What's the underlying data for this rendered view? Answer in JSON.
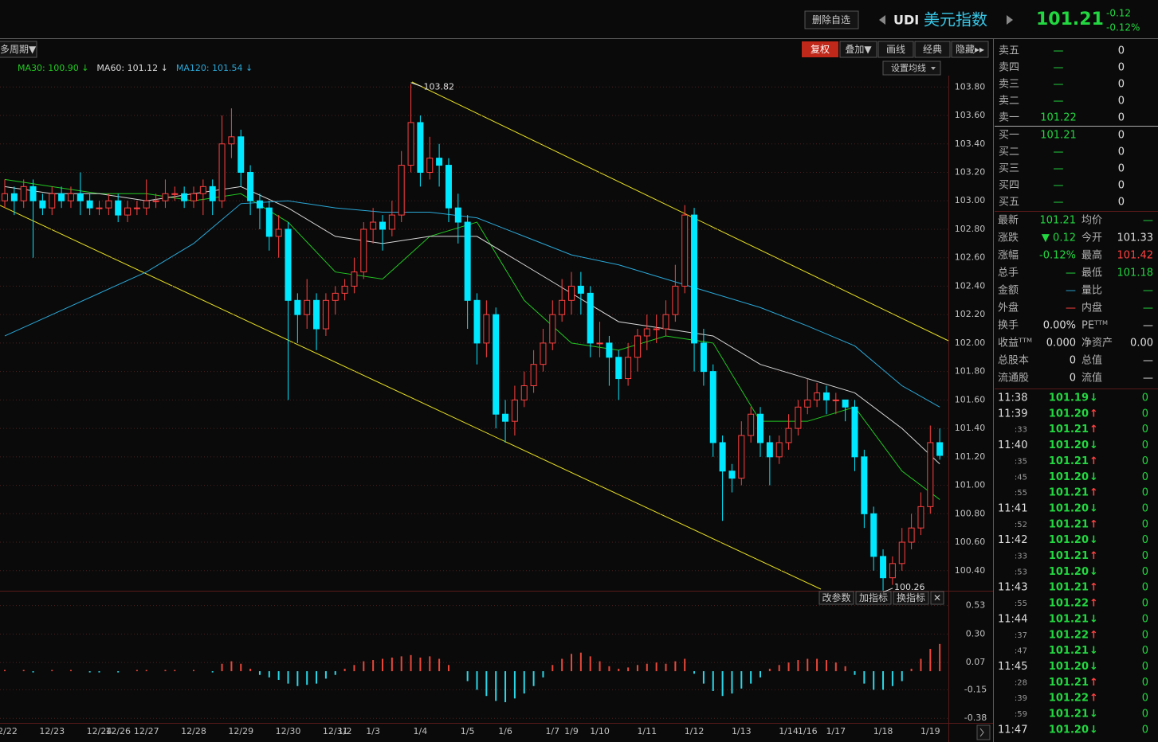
{
  "header": {
    "button": "删除自选",
    "code": "UDI",
    "name": "美元指数",
    "price": "101.21",
    "change": "-0.12",
    "change_pct": "-0.12%"
  },
  "toolbar": {
    "period": "多周期▼",
    "buttons": [
      "复权",
      "叠加▼",
      "画线",
      "经典",
      "隐藏▸▸"
    ],
    "ma_settings": "设置均线"
  },
  "indicator_buttons": [
    "改参数",
    "加指标",
    "换指标",
    "✕"
  ],
  "chart_data": [
    {
      "type": "candlestick",
      "categories": [
        "12/22",
        null,
        null,
        null,
        null,
        "12/23",
        null,
        null,
        null,
        null,
        "12/24",
        null,
        "12/26",
        null,
        null,
        "12/27",
        null,
        null,
        null,
        null,
        "12/28",
        null,
        null,
        null,
        null,
        "12/29",
        null,
        null,
        null,
        null,
        "12/30",
        null,
        null,
        null,
        null,
        "12/31",
        "1/2",
        null,
        null,
        "1/3",
        null,
        null,
        null,
        null,
        "1/4",
        null,
        null,
        null,
        null,
        "1/5",
        null,
        null,
        null,
        "1/6",
        null,
        null,
        null,
        null,
        "1/7",
        null,
        "1/9",
        null,
        null,
        "1/10",
        null,
        null,
        null,
        null,
        "1/11",
        null,
        null,
        null,
        null,
        "1/12",
        null,
        null,
        null,
        null,
        "1/13",
        null,
        null,
        null,
        null,
        "1/14",
        null,
        "1/16",
        null,
        null,
        "1/17",
        null,
        null,
        null,
        null,
        "1/18",
        null,
        null,
        null,
        null,
        "1/19",
        null
      ],
      "open": [
        103.0,
        103.05,
        103.0,
        103.1,
        103.0,
        102.95,
        103.05,
        103.0,
        103.05,
        103.0,
        102.95,
        102.95,
        103.0,
        102.9,
        102.95,
        102.95,
        103.0,
        103.0,
        103.05,
        103.05,
        103.0,
        103.05,
        103.1,
        103.0,
        103.4,
        103.45,
        103.2,
        103.0,
        102.95,
        102.75,
        102.8,
        102.3,
        102.2,
        102.3,
        102.1,
        102.3,
        102.35,
        102.4,
        102.5,
        102.8,
        102.85,
        102.8,
        102.9,
        103.25,
        103.55,
        103.2,
        103.3,
        103.25,
        102.95,
        102.85,
        102.3,
        102.0,
        102.2,
        101.5,
        101.45,
        101.6,
        101.7,
        101.85,
        102.0,
        102.2,
        102.3,
        102.4,
        102.35,
        102.0,
        102.0,
        101.9,
        101.75,
        101.9,
        102.05,
        102.1,
        102.1,
        102.2,
        102.4,
        102.9,
        102.0,
        101.8,
        101.3,
        101.1,
        101.05,
        101.35,
        101.5,
        101.3,
        101.2,
        101.3,
        101.4,
        101.55,
        101.6,
        101.65,
        101.6,
        101.6,
        101.55,
        101.2,
        100.8,
        100.5,
        100.35,
        100.45,
        100.6,
        100.7,
        100.85,
        101.3
      ],
      "high": [
        103.15,
        103.1,
        103.15,
        103.15,
        103.05,
        103.1,
        103.1,
        103.1,
        103.2,
        103.05,
        103.0,
        103.05,
        103.05,
        103.0,
        103.0,
        103.15,
        103.05,
        103.15,
        103.1,
        103.1,
        103.1,
        103.15,
        103.15,
        103.6,
        103.65,
        103.5,
        103.25,
        103.05,
        103.0,
        102.9,
        102.85,
        102.35,
        102.45,
        102.35,
        102.35,
        102.4,
        102.45,
        102.6,
        102.85,
        102.95,
        102.9,
        103.0,
        103.35,
        103.82,
        103.6,
        103.45,
        103.4,
        103.3,
        103.05,
        102.9,
        102.35,
        102.3,
        102.25,
        101.6,
        101.7,
        101.8,
        101.95,
        102.1,
        102.3,
        102.45,
        102.5,
        102.5,
        102.4,
        102.15,
        102.05,
        101.95,
        102.0,
        102.1,
        102.2,
        102.2,
        102.3,
        102.55,
        102.97,
        102.95,
        102.1,
        101.85,
        101.35,
        101.15,
        101.45,
        101.55,
        101.55,
        101.35,
        101.35,
        101.5,
        101.6,
        101.75,
        101.72,
        101.7,
        101.65,
        101.6,
        101.6,
        101.25,
        100.85,
        100.55,
        100.5,
        100.7,
        100.8,
        100.95,
        101.42,
        101.4
      ],
      "low": [
        102.95,
        102.9,
        102.95,
        102.6,
        102.9,
        102.9,
        102.95,
        102.95,
        102.9,
        102.9,
        102.9,
        102.9,
        102.85,
        102.85,
        102.9,
        102.9,
        102.95,
        102.95,
        103.0,
        102.95,
        102.95,
        102.9,
        102.9,
        102.95,
        103.3,
        103.1,
        102.9,
        102.8,
        102.65,
        102.6,
        101.6,
        102.0,
        102.1,
        101.95,
        102.05,
        102.2,
        102.3,
        102.35,
        102.45,
        102.7,
        102.65,
        102.75,
        102.85,
        103.2,
        103.1,
        103.15,
        103.1,
        102.85,
        102.7,
        102.1,
        101.85,
        101.9,
        101.4,
        101.3,
        101.35,
        101.55,
        101.65,
        101.8,
        101.95,
        102.15,
        102.2,
        102.2,
        101.9,
        101.9,
        101.7,
        101.6,
        101.7,
        101.8,
        101.95,
        102.0,
        102.05,
        102.15,
        102.35,
        101.8,
        101.7,
        101.2,
        100.75,
        100.95,
        101.0,
        101.3,
        101.2,
        101.0,
        101.15,
        101.25,
        101.35,
        101.5,
        101.55,
        101.5,
        101.5,
        101.45,
        101.1,
        100.7,
        100.4,
        100.26,
        100.3,
        100.4,
        100.55,
        100.65,
        100.8,
        101.18
      ],
      "close": [
        103.05,
        103.0,
        103.1,
        103.0,
        102.95,
        103.05,
        103.0,
        103.05,
        103.0,
        102.95,
        102.95,
        103.0,
        102.9,
        102.95,
        102.95,
        103.0,
        103.0,
        103.05,
        103.05,
        103.0,
        103.05,
        103.1,
        103.0,
        103.4,
        103.45,
        103.2,
        103.0,
        102.95,
        102.75,
        102.8,
        102.3,
        102.2,
        102.3,
        102.1,
        102.3,
        102.35,
        102.4,
        102.5,
        102.8,
        102.85,
        102.8,
        102.9,
        103.25,
        103.55,
        103.2,
        103.3,
        103.25,
        102.95,
        102.85,
        102.3,
        102.0,
        102.2,
        101.5,
        101.45,
        101.6,
        101.7,
        101.85,
        102.0,
        102.2,
        102.3,
        102.4,
        102.35,
        102.0,
        102.0,
        101.9,
        101.75,
        101.9,
        102.05,
        102.1,
        102.1,
        102.2,
        102.4,
        102.9,
        102.0,
        101.8,
        101.3,
        101.1,
        101.05,
        101.35,
        101.5,
        101.3,
        101.2,
        101.3,
        101.4,
        101.55,
        101.6,
        101.65,
        101.6,
        101.6,
        101.55,
        101.2,
        100.8,
        100.5,
        100.35,
        100.45,
        100.6,
        100.7,
        100.85,
        101.3,
        101.21
      ],
      "up_color": "#ff4040",
      "down_color": "#00e8ff",
      "series": [
        {
          "legend": "MA30: 100.90 ↓",
          "color": "#22c822",
          "x": [
            0,
            5,
            10,
            15,
            20,
            25,
            30,
            35,
            40,
            45,
            50,
            55,
            60,
            65,
            70,
            75,
            80,
            85,
            90,
            95,
            99
          ],
          "values": [
            103.15,
            103.1,
            103.05,
            103.05,
            103.0,
            103.05,
            102.85,
            102.5,
            102.45,
            102.75,
            102.85,
            102.3,
            102.0,
            101.95,
            102.05,
            102.0,
            101.45,
            101.45,
            101.55,
            101.1,
            100.9
          ]
        },
        {
          "legend": "MA60: 101.12 ↓",
          "color": "#d8d8d8",
          "x": [
            0,
            5,
            10,
            15,
            20,
            25,
            30,
            35,
            40,
            45,
            50,
            55,
            60,
            65,
            70,
            75,
            80,
            85,
            90,
            95,
            99
          ],
          "values": [
            103.1,
            103.05,
            103.05,
            103.0,
            103.05,
            103.1,
            102.95,
            102.75,
            102.7,
            102.75,
            102.75,
            102.55,
            102.35,
            102.15,
            102.1,
            102.05,
            101.85,
            101.75,
            101.65,
            101.4,
            101.15
          ]
        },
        {
          "legend": "MA120: 101.54 ↓",
          "color": "#2aa8d8",
          "x": [
            0,
            5,
            10,
            15,
            20,
            25,
            30,
            35,
            40,
            45,
            50,
            55,
            60,
            65,
            70,
            75,
            80,
            85,
            90,
            95,
            99
          ],
          "values": [
            102.05,
            102.2,
            102.35,
            102.5,
            102.7,
            102.98,
            103.0,
            102.95,
            102.92,
            102.92,
            102.88,
            102.75,
            102.62,
            102.55,
            102.45,
            102.35,
            102.25,
            102.12,
            101.98,
            101.7,
            101.55
          ]
        }
      ],
      "ylim": [
        100.27,
        103.88
      ],
      "yticks": [
        {
          "value": 100.4,
          "label": "100.40"
        },
        {
          "value": 100.6,
          "label": "100.60"
        },
        {
          "value": 100.8,
          "label": "100.80"
        },
        {
          "value": 101.0,
          "label": "101.00"
        },
        {
          "value": 101.2,
          "label": "101.20"
        },
        {
          "value": 101.4,
          "label": "101.40"
        },
        {
          "value": 101.6,
          "label": "101.60"
        },
        {
          "value": 101.8,
          "label": "101.80"
        },
        {
          "value": 102.0,
          "label": "102.00"
        },
        {
          "value": 102.2,
          "label": "102.20"
        },
        {
          "value": 102.4,
          "label": "102.40"
        },
        {
          "value": 102.6,
          "label": "102.60"
        },
        {
          "value": 102.8,
          "label": "102.80"
        },
        {
          "value": 103.0,
          "label": "103.00"
        },
        {
          "value": 103.2,
          "label": "103.20"
        },
        {
          "value": 103.4,
          "label": "103.40"
        },
        {
          "value": 103.6,
          "label": "103.60"
        },
        {
          "value": 103.8,
          "label": "103.80"
        }
      ],
      "grid": true
    },
    {
      "type": "bar",
      "values": [
        0.01,
        0.0,
        0.01,
        -0.01,
        0.0,
        0.01,
        0.0,
        0.01,
        0.0,
        -0.01,
        -0.01,
        0.0,
        -0.01,
        0.0,
        0.01,
        0.01,
        0.0,
        0.01,
        0.01,
        0.0,
        0.01,
        0.0,
        -0.01,
        0.06,
        0.08,
        0.06,
        0.02,
        -0.03,
        -0.05,
        -0.07,
        -0.1,
        -0.12,
        -0.11,
        -0.1,
        -0.06,
        -0.03,
        0.02,
        0.05,
        0.08,
        0.09,
        0.1,
        0.11,
        0.12,
        0.13,
        0.11,
        0.12,
        0.1,
        0.05,
        0.0,
        -0.08,
        -0.15,
        -0.2,
        -0.24,
        -0.25,
        -0.22,
        -0.18,
        -0.12,
        -0.05,
        0.05,
        0.1,
        0.14,
        0.15,
        0.12,
        0.08,
        0.04,
        0.02,
        0.03,
        0.05,
        0.06,
        0.07,
        0.06,
        0.08,
        0.1,
        -0.02,
        -0.1,
        -0.16,
        -0.2,
        -0.18,
        -0.14,
        -0.1,
        -0.05,
        0.02,
        0.05,
        0.07,
        0.09,
        0.1,
        0.1,
        0.09,
        0.07,
        0.04,
        -0.03,
        -0.1,
        -0.15,
        -0.15,
        -0.12,
        -0.08,
        0.02,
        0.1,
        0.18,
        0.22
      ],
      "up_color": "#e8483a",
      "down_color": "#2ad8e8",
      "ylim": [
        -0.43,
        0.63
      ],
      "yticks": [
        0.53,
        {
          "value": 0.3,
          "label": "0.30"
        },
        0.07,
        -0.15,
        -0.38
      ],
      "grid": true
    }
  ],
  "order_book": {
    "rows": [
      [
        "卖五",
        "—",
        "0"
      ],
      [
        "卖四",
        "—",
        "0"
      ],
      [
        "卖三",
        "—",
        "0"
      ],
      [
        "卖二",
        "—",
        "0"
      ],
      [
        "卖一",
        "101.22",
        "0"
      ],
      [
        "买一",
        "101.21",
        "0"
      ],
      [
        "买二",
        "—",
        "0"
      ],
      [
        "买三",
        "—",
        "0"
      ],
      [
        "买四",
        "—",
        "0"
      ],
      [
        "买五",
        "—",
        "0"
      ]
    ]
  },
  "quote": {
    "rows": [
      [
        "最新",
        "101.21",
        "均价",
        "—"
      ],
      [
        "涨跌",
        "▼ 0.12",
        "今开",
        "101.33"
      ],
      [
        "涨幅",
        "-0.12%",
        "最高",
        "101.42"
      ],
      [
        "总手",
        "—",
        "最低",
        "101.18"
      ],
      [
        "金额",
        "—",
        "量比",
        "—"
      ],
      [
        "外盘",
        "—",
        "内盘",
        "—"
      ],
      [
        "换手",
        "0.00%",
        "PEᵀᵀᴹ",
        "—"
      ],
      [
        "收益ᵀᵀᴹ",
        "0.000",
        "净资产",
        "0.00"
      ],
      [
        "总股本",
        "0",
        "总值",
        "—"
      ],
      [
        "流通股",
        "0",
        "流值",
        "—"
      ]
    ]
  },
  "ticks": {
    "rows": [
      [
        "11:38",
        "101.19",
        "↓",
        "0"
      ],
      [
        "11:39",
        "101.20",
        "↑",
        "0"
      ],
      [
        ":33",
        "101.21",
        "↑",
        "0"
      ],
      [
        "11:40",
        "101.20",
        "↓",
        "0"
      ],
      [
        ":35",
        "101.21",
        "↑",
        "0"
      ],
      [
        ":45",
        "101.20",
        "↓",
        "0"
      ],
      [
        ":55",
        "101.21",
        "↑",
        "0"
      ],
      [
        "11:41",
        "101.20",
        "↓",
        "0"
      ],
      [
        ":52",
        "101.21",
        "↑",
        "0"
      ],
      [
        "11:42",
        "101.20",
        "↓",
        "0"
      ],
      [
        ":33",
        "101.21",
        "↑",
        "0"
      ],
      [
        ":53",
        "101.20",
        "↓",
        "0"
      ],
      [
        "11:43",
        "101.21",
        "↑",
        "0"
      ],
      [
        ":55",
        "101.22",
        "↑",
        "0"
      ],
      [
        "11:44",
        "101.21",
        "↓",
        "0"
      ],
      [
        ":37",
        "101.22",
        "↑",
        "0"
      ],
      [
        ":47",
        "101.21",
        "↓",
        "0"
      ],
      [
        "11:45",
        "101.20",
        "↓",
        "0"
      ],
      [
        ":28",
        "101.21",
        "↑",
        "0"
      ],
      [
        ":39",
        "101.22",
        "↑",
        "0"
      ],
      [
        ":59",
        "101.21",
        "↓",
        "0"
      ],
      [
        "11:47",
        "101.20",
        "↓",
        "0"
      ]
    ]
  }
}
